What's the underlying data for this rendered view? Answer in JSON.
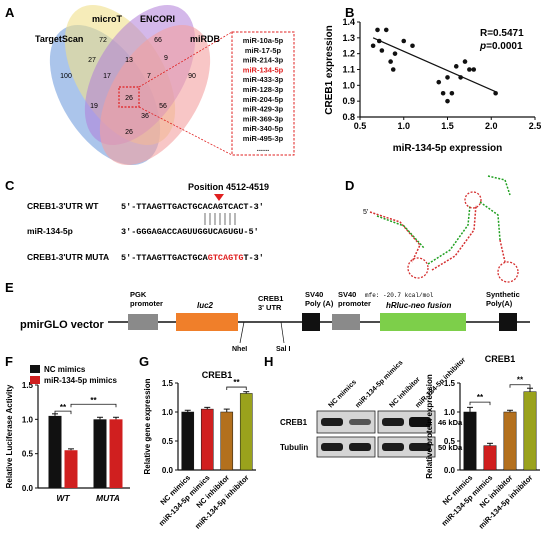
{
  "panels": {
    "A": {
      "letter": "A",
      "sets": [
        "TargetScan",
        "microT",
        "ENCORI",
        "miRDB"
      ],
      "region_counts": [
        "72",
        "66",
        "27",
        "13",
        "9",
        "100",
        "90",
        "17",
        "7",
        "26",
        "19",
        "56",
        "36",
        "26"
      ],
      "mirna_list": [
        "miR-10a-5p",
        "miR-17-5p",
        "miR-214-3p",
        "miR-134-5p",
        "miR-433-3p",
        "miR-128-3p",
        "miR-204-5p",
        "miR-429-3p",
        "miR-369-3p",
        "miR-340-5p",
        "miR-495-3p",
        "......"
      ],
      "highlight": "miR-134-5p",
      "colors": {
        "TargetScan": "#7ea6e0",
        "microT": "#f0e08a",
        "ENCORI": "#b07ed8",
        "miRDB": "#f4a0a0",
        "highlight": "#e02020"
      }
    },
    "B": {
      "letter": "B",
      "r_text": "R=0.5471",
      "p_text": "p=0.0001",
      "p_label": "p",
      "p_value": "=0.0001",
      "xlabel": "miR-134-5p expression",
      "ylabel": "CREB1 expression",
      "xticks": [
        "0.5",
        "1.0",
        "1.5",
        "2.0",
        "2.5"
      ],
      "yticks": [
        "0.8",
        "0.9",
        "1.0",
        "1.1",
        "1.2",
        "1.3",
        "1.4"
      ]
    },
    "C": {
      "letter": "C",
      "position": "Position 4512-4519",
      "rows": [
        {
          "label": "CREB1-3'UTR WT",
          "seq": "5'-TTAAGTTGACTGCACAGTCACT-3'"
        },
        {
          "label": "miR-134-5p",
          "seq": "3'-GGGAGACCAGUUGGUCAGUGU-5'"
        },
        {
          "label": "CREB1-3'UTR MUTA",
          "seq_prefix": "5'-TTAAGTTGACTGCA",
          "seq_mut": "GTCAGTG",
          "seq_suffix": "T-3'"
        }
      ]
    },
    "D": {
      "letter": "D",
      "five_prime": "5'",
      "mfe": "mfe: -20.7 kcal/mol"
    },
    "E": {
      "letter": "E",
      "vector": "pmirGLO vector",
      "features": {
        "pgk": "PGK\npromoter",
        "luc2": "luc2",
        "creb": "CREB1\n3' UTR",
        "sv40polya": "SV40\nPoly (A)",
        "sv40prom": "SV40\npromoter",
        "hrluc": "hRluc-neo fusion",
        "synthetic": "Synthetic\nPoly(A)",
        "nhe": "NheI",
        "sal": "Sal I"
      }
    },
    "F": {
      "letter": "F",
      "legend": [
        "NC mimics",
        "miR-134-5p mimics"
      ],
      "ylabel": "Relative Luciferase Activity",
      "groups": [
        "WT",
        "MUTA"
      ],
      "sig": [
        "**",
        "**"
      ]
    },
    "G": {
      "letter": "G",
      "title": "CREB1",
      "ylabel": "Relative gene expression",
      "sig": "**"
    },
    "H": {
      "letter": "H",
      "blot_headers": [
        "NC mimics",
        "miR-134-5p mimics",
        "NC inhibitor",
        "miR-134-5p inhibitor"
      ],
      "rows": [
        "CREB1",
        "Tubulin"
      ],
      "kda": [
        "46 kDa",
        "50 kDa"
      ],
      "chart_title": "CREB1",
      "ylabel": "Relative protein expression",
      "sig": [
        "**",
        "**"
      ]
    }
  },
  "chart_data": [
    {
      "type": "scatter",
      "panel": "B",
      "xlabel": "miR-134-5p expression",
      "ylabel": "CREB1 expression",
      "xlim": [
        0.5,
        2.5
      ],
      "ylim": [
        0.8,
        1.4
      ],
      "x": [
        0.65,
        0.7,
        0.72,
        0.75,
        0.8,
        0.85,
        0.88,
        0.9,
        1.0,
        1.1,
        1.4,
        1.45,
        1.5,
        1.5,
        1.55,
        1.6,
        1.65,
        1.7,
        1.75,
        1.8,
        2.05
      ],
      "y": [
        1.25,
        1.35,
        1.28,
        1.22,
        1.35,
        1.15,
        1.1,
        1.2,
        1.28,
        1.25,
        1.02,
        0.95,
        1.05,
        0.9,
        0.95,
        1.12,
        1.05,
        1.15,
        1.1,
        1.1,
        0.95
      ],
      "fit": {
        "x": [
          0.65,
          2.05
        ],
        "y": [
          1.3,
          0.96
        ]
      }
    },
    {
      "type": "bar",
      "panel": "F",
      "categories": [
        "WT",
        "MUTA"
      ],
      "series": [
        {
          "name": "NC mimics",
          "values": [
            1.05,
            1.0
          ],
          "errors": [
            0.03,
            0.03
          ],
          "color": "#111111"
        },
        {
          "name": "miR-134-5p mimics",
          "values": [
            0.55,
            1.0
          ],
          "errors": [
            0.02,
            0.03
          ],
          "color": "#d01f1f"
        }
      ],
      "ylabel": "Relative Luciferase Activity",
      "ylim": [
        0,
        1.5
      ],
      "yticks": [
        "0.0",
        "0.5",
        "1.0",
        "1.5"
      ]
    },
    {
      "type": "bar",
      "panel": "G",
      "title": "CREB1",
      "categories": [
        "NC mimics",
        "miR-134-5p mimics",
        "NC inhibitor",
        "miR-134-5p inhibitor"
      ],
      "values": [
        1.0,
        1.05,
        1.0,
        1.32
      ],
      "errors": [
        0.03,
        0.03,
        0.05,
        0.03
      ],
      "colors": [
        "#111111",
        "#d01f1f",
        "#b3701e",
        "#9aa21c"
      ],
      "ylabel": "Relative gene expression",
      "ylim": [
        0,
        1.5
      ],
      "yticks": [
        "0.0",
        "0.5",
        "1.0",
        "1.5"
      ]
    },
    {
      "type": "bar",
      "panel": "H",
      "title": "CREB1",
      "categories": [
        "NC mimics",
        "miR-134-5p mimics",
        "NC inhibitor",
        "miR-134-5p inhibitor"
      ],
      "values": [
        1.0,
        0.42,
        1.0,
        1.35
      ],
      "errors": [
        0.08,
        0.04,
        0.03,
        0.06
      ],
      "colors": [
        "#111111",
        "#d01f1f",
        "#b3701e",
        "#9aa21c"
      ],
      "ylabel": "Relative protein expression",
      "ylim": [
        0,
        1.5
      ],
      "yticks": [
        "0.0",
        "0.5",
        "1.0",
        "1.5"
      ]
    }
  ]
}
